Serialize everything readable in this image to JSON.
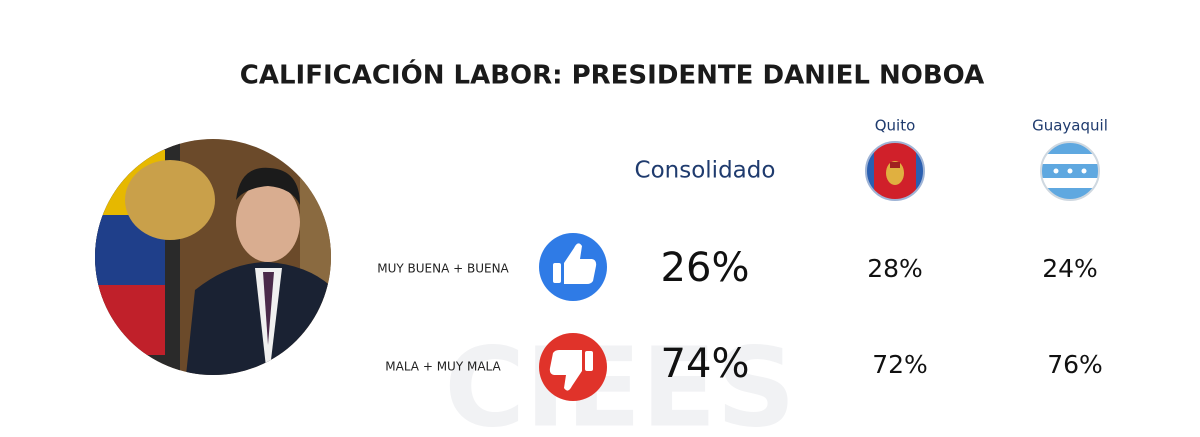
{
  "title": "CALIFICACIÓN LABOR: PRESIDENTE DANIEL NOBOA",
  "watermark": "CIEES",
  "table": {
    "columns": [
      "Consolidado",
      "Quito",
      "Guayaquil"
    ],
    "rows": [
      {
        "label": "MUY BUENA + BUENA",
        "values": [
          "26%",
          "28%",
          "24%"
        ]
      },
      {
        "label": "MALA + MUY MALA",
        "values": [
          "74%",
          "72%",
          "76%"
        ]
      }
    ]
  }
}
